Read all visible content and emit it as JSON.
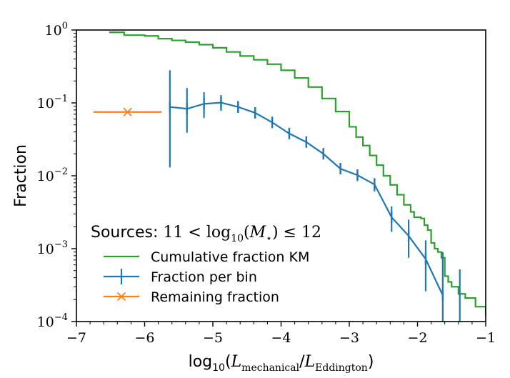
{
  "chart_data": {
    "type": "line",
    "title": "",
    "xlabel": "log10(Lmechanical / LEddington)",
    "ylabel": "Fraction",
    "xscale": "linear",
    "yscale": "log",
    "xlim": [
      -7,
      -1
    ],
    "ylim": [
      0.0001,
      1
    ],
    "x_ticks": [
      -7,
      -6,
      -5,
      -4,
      -3,
      -2,
      -1
    ],
    "x_tick_labels": [
      "−7",
      "−6",
      "−5",
      "−4",
      "−3",
      "−2",
      "−1"
    ],
    "y_ticks": [
      0.0001,
      0.001,
      0.01,
      0.1,
      1
    ],
    "y_tick_labels": [
      {
        "base": "10",
        "exp": "−4"
      },
      {
        "base": "10",
        "exp": "−3"
      },
      {
        "base": "10",
        "exp": "−2"
      },
      {
        "base": "10",
        "exp": "−1"
      },
      {
        "base": "10",
        "exp": "0"
      }
    ],
    "grid": false,
    "legend": {
      "title": "Sources: 11 < log10(M⋆) ≤ 12",
      "position": "lower-left",
      "entries": [
        "Cumulative fraction KM",
        "Fraction per bin",
        "Remaining fraction"
      ]
    },
    "series": [
      {
        "name": "Cumulative fraction KM",
        "color": "#2ca02c",
        "style": "step-line",
        "points": [
          [
            -6.52,
            0.93
          ],
          [
            -6.3,
            0.85
          ],
          [
            -6.0,
            0.83
          ],
          [
            -5.8,
            0.76
          ],
          [
            -5.6,
            0.72
          ],
          [
            -5.4,
            0.68
          ],
          [
            -5.2,
            0.63
          ],
          [
            -5.0,
            0.57
          ],
          [
            -4.8,
            0.5
          ],
          [
            -4.6,
            0.44
          ],
          [
            -4.4,
            0.39
          ],
          [
            -4.2,
            0.34
          ],
          [
            -4.0,
            0.28
          ],
          [
            -3.8,
            0.22
          ],
          [
            -3.6,
            0.165
          ],
          [
            -3.4,
            0.115
          ],
          [
            -3.2,
            0.076
          ],
          [
            -3.0,
            0.047
          ],
          [
            -2.9,
            0.034
          ],
          [
            -2.8,
            0.026
          ],
          [
            -2.7,
            0.019
          ],
          [
            -2.6,
            0.014
          ],
          [
            -2.5,
            0.01
          ],
          [
            -2.4,
            0.0075
          ],
          [
            -2.3,
            0.0055
          ],
          [
            -2.2,
            0.004
          ],
          [
            -2.1,
            0.0032
          ],
          [
            -2.05,
            0.0027
          ],
          [
            -1.95,
            0.0026
          ],
          [
            -1.9,
            0.0021
          ],
          [
            -1.85,
            0.0018
          ],
          [
            -1.8,
            0.0012
          ],
          [
            -1.75,
            0.001
          ],
          [
            -1.7,
            0.0009
          ],
          [
            -1.65,
            0.00075
          ],
          [
            -1.6,
            0.00042
          ],
          [
            -1.55,
            0.00035
          ],
          [
            -1.5,
            0.0003
          ],
          [
            -1.4,
            0.00024
          ],
          [
            -1.3,
            0.00021
          ],
          [
            -1.15,
            0.00016
          ],
          [
            -1.0,
            0.00012
          ]
        ]
      },
      {
        "name": "Fraction per bin",
        "color": "#1f77b4",
        "style": "line-with-errorbars",
        "points": [
          {
            "x": -5.63,
            "y": 0.088,
            "ylo": 0.013,
            "yhi": 0.28
          },
          {
            "x": -5.38,
            "y": 0.083,
            "ylo": 0.039,
            "yhi": 0.16
          },
          {
            "x": -5.13,
            "y": 0.097,
            "ylo": 0.062,
            "yhi": 0.14
          },
          {
            "x": -4.88,
            "y": 0.101,
            "ylo": 0.078,
            "yhi": 0.128
          },
          {
            "x": -4.63,
            "y": 0.088,
            "ylo": 0.073,
            "yhi": 0.106
          },
          {
            "x": -4.38,
            "y": 0.073,
            "ylo": 0.063,
            "yhi": 0.086
          },
          {
            "x": -4.13,
            "y": 0.054,
            "ylo": 0.047,
            "yhi": 0.062
          },
          {
            "x": -3.88,
            "y": 0.038,
            "ylo": 0.033,
            "yhi": 0.044
          },
          {
            "x": -3.63,
            "y": 0.029,
            "ylo": 0.025,
            "yhi": 0.034
          },
          {
            "x": -3.38,
            "y": 0.02,
            "ylo": 0.017,
            "yhi": 0.024
          },
          {
            "x": -3.13,
            "y": 0.0125,
            "ylo": 0.0105,
            "yhi": 0.015
          },
          {
            "x": -2.88,
            "y": 0.0102,
            "ylo": 0.0085,
            "yhi": 0.0122
          },
          {
            "x": -2.63,
            "y": 0.0076,
            "ylo": 0.0061,
            "yhi": 0.0093
          },
          {
            "x": -2.38,
            "y": 0.0027,
            "ylo": 0.0017,
            "yhi": 0.0038
          },
          {
            "x": -2.13,
            "y": 0.0015,
            "ylo": 0.00075,
            "yhi": 0.0025
          },
          {
            "x": -1.88,
            "y": 0.00072,
            "ylo": 0.00026,
            "yhi": 0.0013
          },
          {
            "x": -1.63,
            "y": 0.00023,
            "ylo": 0.0001,
            "yhi": 0.0009
          },
          {
            "x": -1.38,
            "y": null,
            "ylo": 0.0001,
            "yhi": 0.00052
          }
        ]
      },
      {
        "name": "Remaining fraction",
        "color": "#ff7f0e",
        "style": "marker-with-xerror",
        "points": [
          {
            "x": -6.25,
            "y": 0.075,
            "xlo": -6.75,
            "xhi": -5.75
          }
        ]
      }
    ]
  }
}
